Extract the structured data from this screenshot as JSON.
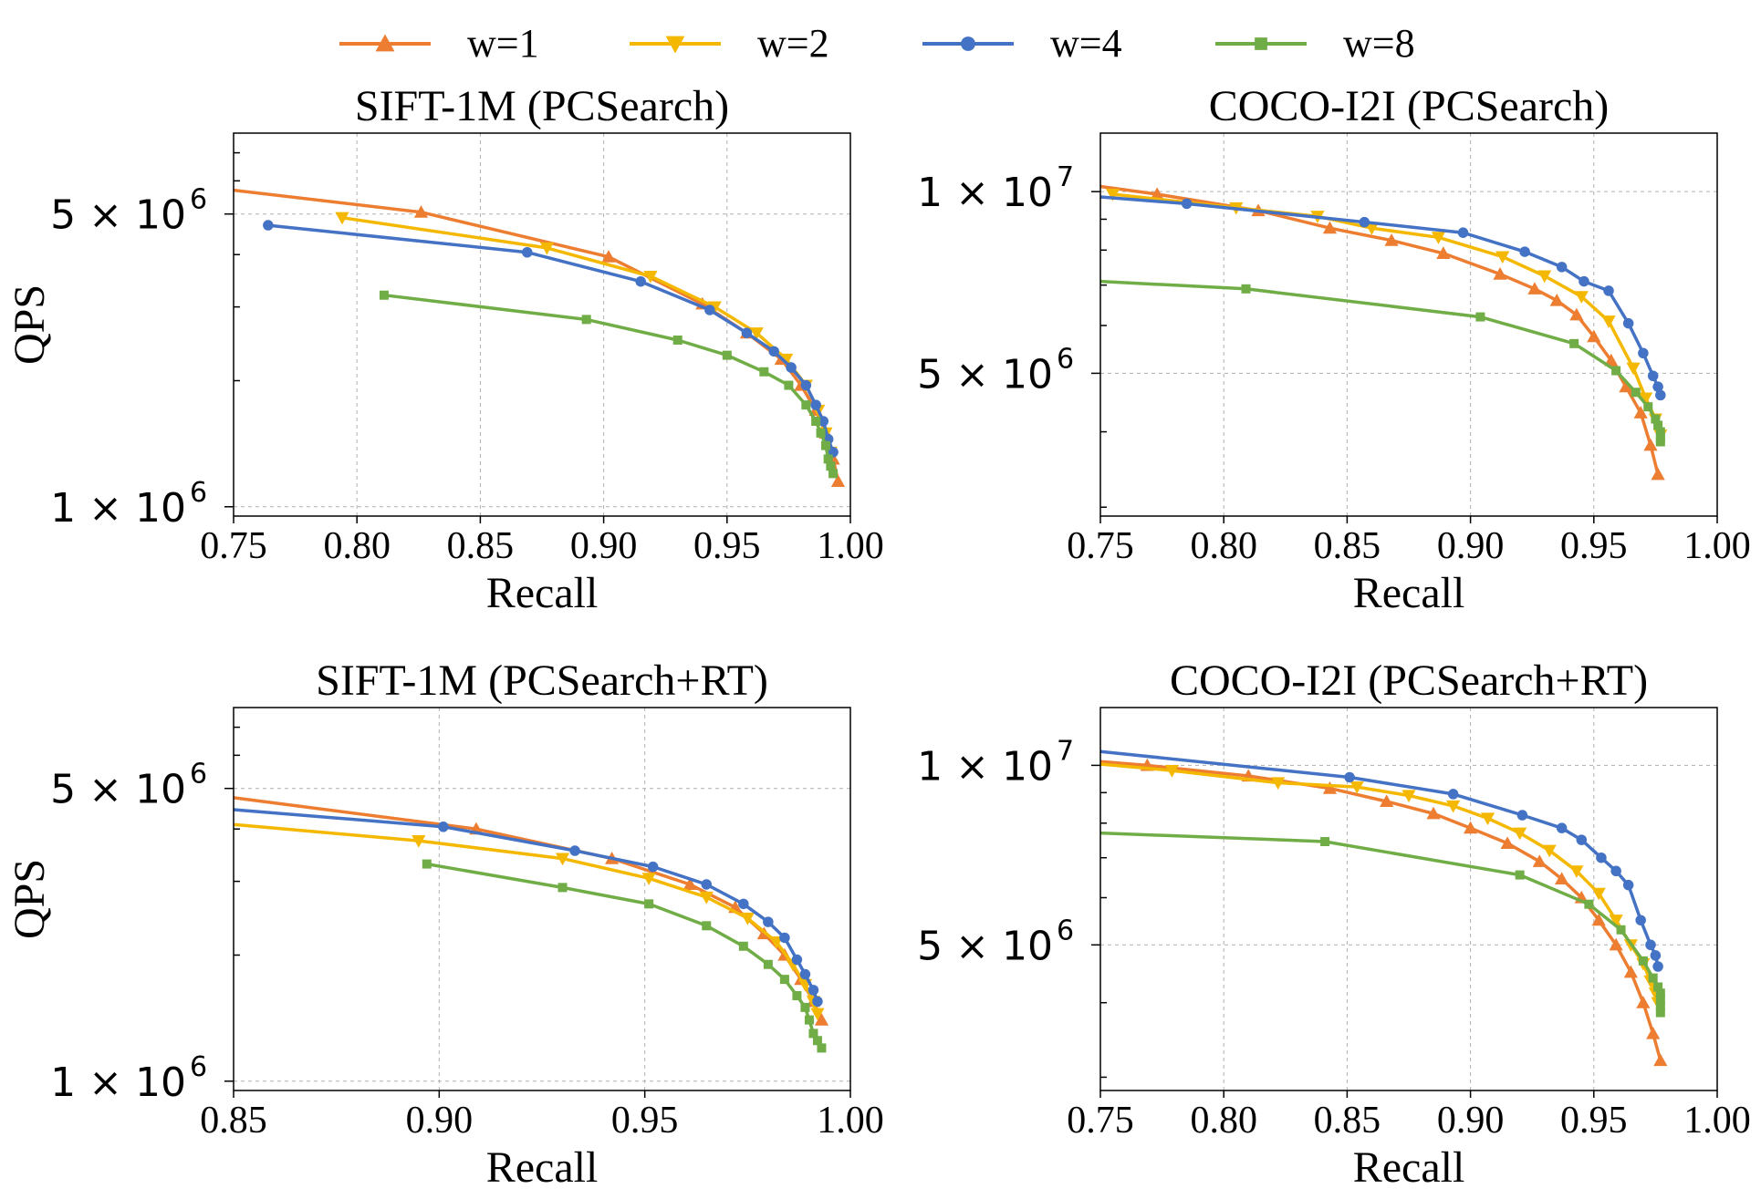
{
  "legend": {
    "placement": "top-center",
    "entries": [
      {
        "label": "w=1",
        "color": "#ED7D31",
        "marker": "triangle-up"
      },
      {
        "label": "w=2",
        "color": "#F5B800",
        "marker": "triangle-down"
      },
      {
        "label": "w=4",
        "color": "#4472C4",
        "marker": "circle"
      },
      {
        "label": "w=8",
        "color": "#70AD47",
        "marker": "square"
      }
    ]
  },
  "chart_data": [
    {
      "type": "line",
      "title": "SIFT-1M (PCSearch)",
      "xlabel": "Recall",
      "ylabel": "QPS",
      "yscale": "log",
      "xlim": [
        0.75,
        1.0
      ],
      "ylim": [
        950000,
        7800000
      ],
      "xticks": [
        "0.75",
        "0.80",
        "0.85",
        "0.90",
        "0.95",
        "1.00"
      ],
      "xtick_values": [
        0.75,
        0.8,
        0.85,
        0.9,
        0.95,
        1.0
      ],
      "yticks": [
        {
          "value": 5000000,
          "base": "5 × 10",
          "exp": "6"
        },
        {
          "value": 1000000,
          "base": "1 × 10",
          "exp": "6"
        }
      ],
      "minor_grid": [
        2000000,
        3000000,
        4000000,
        6000000,
        7000000
      ],
      "grid": true,
      "series": [
        {
          "name": "w=1",
          "x": [
            0.75,
            0.826,
            0.902,
            0.94,
            0.958,
            0.972,
            0.98,
            0.986,
            0.99,
            0.993,
            0.995
          ],
          "y": [
            5700000,
            5050000,
            3950000,
            3050000,
            2600000,
            2250000,
            1950000,
            1700000,
            1500000,
            1300000,
            1150000
          ]
        },
        {
          "name": "w=2",
          "x": [
            0.794,
            0.877,
            0.919,
            0.945,
            0.962,
            0.974,
            0.982,
            0.987,
            0.99,
            0.992
          ],
          "y": [
            4900000,
            4150000,
            3550000,
            3000000,
            2600000,
            2250000,
            1950000,
            1700000,
            1500000,
            1350000
          ]
        },
        {
          "name": "w=4",
          "x": [
            0.764,
            0.869,
            0.915,
            0.943,
            0.958,
            0.969,
            0.976,
            0.982,
            0.986,
            0.989,
            0.991,
            0.993
          ],
          "y": [
            4700000,
            4050000,
            3450000,
            2950000,
            2600000,
            2350000,
            2150000,
            1950000,
            1750000,
            1600000,
            1450000,
            1350000
          ]
        },
        {
          "name": "w=8",
          "x": [
            0.811,
            0.893,
            0.93,
            0.95,
            0.965,
            0.975,
            0.982,
            0.986,
            0.988,
            0.99,
            0.991,
            0.992,
            0.993
          ],
          "y": [
            3200000,
            2800000,
            2500000,
            2300000,
            2100000,
            1950000,
            1750000,
            1600000,
            1500000,
            1400000,
            1300000,
            1250000,
            1200000
          ]
        }
      ]
    },
    {
      "type": "line",
      "title": "COCO-I2I (PCSearch)",
      "xlabel": "Recall",
      "ylabel": "",
      "yscale": "log",
      "xlim": [
        0.75,
        1.0
      ],
      "ylim": [
        2900000,
        12500000
      ],
      "xticks": [
        "0.75",
        "0.80",
        "0.85",
        "0.90",
        "0.95",
        "1.00"
      ],
      "xtick_values": [
        0.75,
        0.8,
        0.85,
        0.9,
        0.95,
        1.0
      ],
      "yticks": [
        {
          "value": 10000000,
          "base": "1 × 10",
          "exp": "7"
        },
        {
          "value": 5000000,
          "base": "5 × 10",
          "exp": "6"
        }
      ],
      "minor_grid": [
        3000000,
        4000000,
        6000000,
        7000000,
        8000000,
        9000000
      ],
      "grid": true,
      "series": [
        {
          "name": "w=1",
          "x": [
            0.75,
            0.773,
            0.814,
            0.843,
            0.868,
            0.889,
            0.912,
            0.926,
            0.935,
            0.943,
            0.95,
            0.957,
            0.963,
            0.969,
            0.973,
            0.976
          ],
          "y": [
            10200000,
            9900000,
            9300000,
            8700000,
            8300000,
            7900000,
            7300000,
            6900000,
            6600000,
            6250000,
            5750000,
            5250000,
            4750000,
            4300000,
            3800000,
            3400000
          ]
        },
        {
          "name": "w=2",
          "x": [
            0.755,
            0.805,
            0.838,
            0.86,
            0.887,
            0.913,
            0.93,
            0.945,
            0.956,
            0.966,
            0.971,
            0.975,
            0.977
          ],
          "y": [
            9900000,
            9400000,
            9100000,
            8700000,
            8400000,
            7800000,
            7250000,
            6700000,
            6100000,
            5100000,
            4550000,
            4200000,
            3950000
          ]
        },
        {
          "name": "w=4",
          "x": [
            0.75,
            0.785,
            0.857,
            0.897,
            0.922,
            0.937,
            0.946,
            0.956,
            0.964,
            0.97,
            0.974,
            0.976,
            0.977
          ],
          "y": [
            9800000,
            9550000,
            8900000,
            8550000,
            7950000,
            7500000,
            7100000,
            6850000,
            6050000,
            5400000,
            4950000,
            4750000,
            4600000
          ]
        },
        {
          "name": "w=8",
          "x": [
            0.75,
            0.809,
            0.904,
            0.942,
            0.959,
            0.967,
            0.972,
            0.975,
            0.976,
            0.977,
            0.977,
            0.977
          ],
          "y": [
            7100000,
            6900000,
            6200000,
            5600000,
            5050000,
            4650000,
            4400000,
            4200000,
            4100000,
            4000000,
            3900000,
            3850000
          ]
        }
      ]
    },
    {
      "type": "line",
      "title": "SIFT-1M (PCSearch+RT)",
      "xlabel": "Recall",
      "ylabel": "QPS",
      "yscale": "log",
      "xlim": [
        0.85,
        1.0
      ],
      "ylim": [
        950000,
        7800000
      ],
      "xticks": [
        "0.85",
        "0.90",
        "0.95",
        "1.00"
      ],
      "xtick_values": [
        0.85,
        0.9,
        0.95,
        1.0
      ],
      "yticks": [
        {
          "value": 5000000,
          "base": "5 × 10",
          "exp": "6"
        },
        {
          "value": 1000000,
          "base": "1 × 10",
          "exp": "6"
        }
      ],
      "minor_grid": [
        2000000,
        3000000,
        4000000,
        6000000,
        7000000
      ],
      "grid": true,
      "series": [
        {
          "name": "w=1",
          "x": [
            0.85,
            0.909,
            0.942,
            0.961,
            0.972,
            0.979,
            0.984,
            0.988,
            0.991,
            0.993
          ],
          "y": [
            4750000,
            4000000,
            3400000,
            2950000,
            2600000,
            2250000,
            2000000,
            1750000,
            1550000,
            1400000
          ]
        },
        {
          "name": "w=2",
          "x": [
            0.85,
            0.895,
            0.93,
            0.951,
            0.965,
            0.975,
            0.982,
            0.986,
            0.989,
            0.991,
            0.992
          ],
          "y": [
            4100000,
            3750000,
            3400000,
            3050000,
            2750000,
            2450000,
            2150000,
            1900000,
            1700000,
            1550000,
            1450000
          ]
        },
        {
          "name": "w=4",
          "x": [
            0.85,
            0.901,
            0.933,
            0.952,
            0.965,
            0.974,
            0.98,
            0.984,
            0.987,
            0.989,
            0.991,
            0.992
          ],
          "y": [
            4450000,
            4050000,
            3550000,
            3250000,
            2950000,
            2650000,
            2400000,
            2200000,
            1950000,
            1800000,
            1650000,
            1550000
          ]
        },
        {
          "name": "w=8",
          "x": [
            0.897,
            0.93,
            0.951,
            0.965,
            0.974,
            0.98,
            0.984,
            0.987,
            0.989,
            0.99,
            0.991,
            0.992,
            0.993
          ],
          "y": [
            3300000,
            2900000,
            2650000,
            2350000,
            2100000,
            1900000,
            1750000,
            1600000,
            1500000,
            1400000,
            1300000,
            1250000,
            1200000
          ]
        }
      ]
    },
    {
      "type": "line",
      "title": "COCO-I2I (PCSearch+RT)",
      "xlabel": "Recall",
      "ylabel": "",
      "yscale": "log",
      "xlim": [
        0.75,
        1.0
      ],
      "ylim": [
        2850000,
        12500000
      ],
      "xticks": [
        "0.75",
        "0.80",
        "0.85",
        "0.90",
        "0.95",
        "1.00"
      ],
      "xtick_values": [
        0.75,
        0.8,
        0.85,
        0.9,
        0.95,
        1.0
      ],
      "yticks": [
        {
          "value": 10000000,
          "base": "1 × 10",
          "exp": "7"
        },
        {
          "value": 5000000,
          "base": "5 × 10",
          "exp": "6"
        }
      ],
      "minor_grid": [
        3000000,
        4000000,
        6000000,
        7000000,
        8000000,
        9000000
      ],
      "grid": true,
      "series": [
        {
          "name": "w=1",
          "x": [
            0.75,
            0.769,
            0.81,
            0.843,
            0.866,
            0.885,
            0.9,
            0.915,
            0.928,
            0.937,
            0.945,
            0.952,
            0.959,
            0.965,
            0.97,
            0.974,
            0.977
          ],
          "y": [
            10150000,
            10000000,
            9600000,
            9150000,
            8700000,
            8300000,
            7850000,
            7400000,
            6900000,
            6450000,
            6000000,
            5500000,
            5000000,
            4500000,
            4000000,
            3550000,
            3200000
          ]
        },
        {
          "name": "w=2",
          "x": [
            0.75,
            0.779,
            0.822,
            0.854,
            0.875,
            0.893,
            0.907,
            0.92,
            0.932,
            0.943,
            0.952,
            0.959,
            0.965,
            0.97,
            0.973,
            0.975,
            0.976
          ],
          "y": [
            10050000,
            9800000,
            9350000,
            9200000,
            8900000,
            8550000,
            8150000,
            7700000,
            7200000,
            6650000,
            6100000,
            5500000,
            5000000,
            4650000,
            4350000,
            4150000,
            4000000
          ]
        },
        {
          "name": "w=4",
          "x": [
            0.75,
            0.851,
            0.893,
            0.921,
            0.937,
            0.945,
            0.953,
            0.959,
            0.964,
            0.969,
            0.973,
            0.975,
            0.976
          ],
          "y": [
            10550000,
            9550000,
            8950000,
            8250000,
            7850000,
            7500000,
            7000000,
            6650000,
            6300000,
            5500000,
            5000000,
            4800000,
            4600000
          ]
        },
        {
          "name": "w=8",
          "x": [
            0.75,
            0.841,
            0.92,
            0.948,
            0.961,
            0.97,
            0.974,
            0.976,
            0.977,
            0.977,
            0.977,
            0.977
          ],
          "y": [
            7700000,
            7450000,
            6550000,
            5850000,
            5300000,
            4700000,
            4400000,
            4250000,
            4150000,
            4050000,
            3950000,
            3850000
          ]
        }
      ]
    }
  ]
}
